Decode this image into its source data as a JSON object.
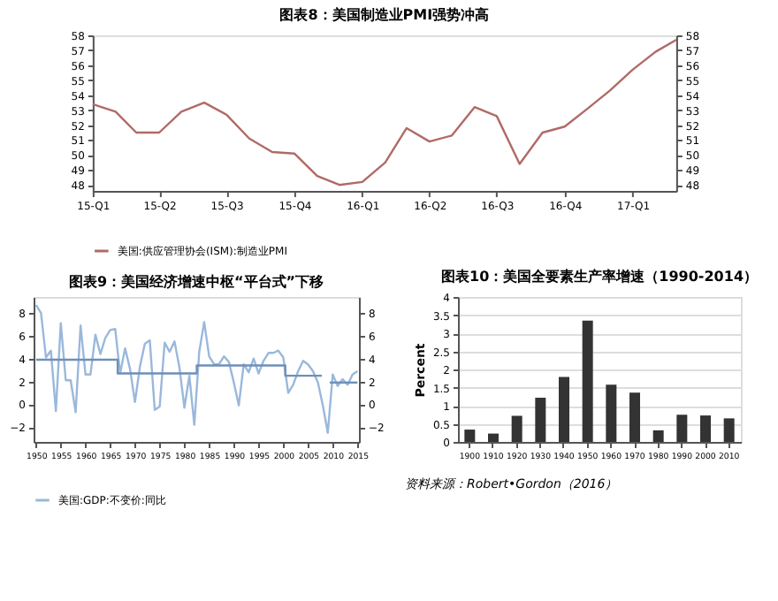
{
  "chart_data": [
    {
      "type": "line",
      "title": "图表8：美国制造业PMI强势冲高",
      "x": [
        "2015-01",
        "2015-02",
        "2015-03",
        "2015-04",
        "2015-05",
        "2015-06",
        "2015-07",
        "2015-08",
        "2015-09",
        "2015-10",
        "2015-11",
        "2015-12",
        "2016-01",
        "2016-02",
        "2016-03",
        "2016-04",
        "2016-05",
        "2016-06",
        "2016-07",
        "2016-08",
        "2016-09",
        "2016-10",
        "2016-11",
        "2016-12",
        "2017-01",
        "2017-02",
        "2017-03"
      ],
      "series": [
        {
          "name": "美国:供应管理协会(ISM):制造业PMI",
          "color": "#b06a66",
          "values": [
            53.4,
            52.9,
            51.5,
            51.5,
            52.9,
            53.5,
            52.7,
            51.1,
            50.2,
            50.1,
            48.6,
            48.0,
            48.2,
            49.5,
            51.8,
            50.9,
            51.3,
            53.2,
            52.6,
            49.4,
            51.5,
            51.9,
            53.1,
            54.3,
            55.7,
            56.9,
            57.7
          ]
        }
      ],
      "xlim": [
        "2015-01",
        "2017-03"
      ],
      "xticks": [
        {
          "value": "2015-01",
          "label": "15-Q1"
        },
        {
          "value": "2015-04",
          "label": "15-Q2"
        },
        {
          "value": "2015-07",
          "label": "15-Q3"
        },
        {
          "value": "2015-10",
          "label": "15-Q4"
        },
        {
          "value": "2016-01",
          "label": "16-Q1"
        },
        {
          "value": "2016-04",
          "label": "16-Q2"
        },
        {
          "value": "2016-07",
          "label": "16-Q3"
        },
        {
          "value": "2016-10",
          "label": "16-Q4"
        },
        {
          "value": "2017-01",
          "label": "17-Q1"
        }
      ],
      "ylim": [
        47.6,
        58
      ],
      "yticks": [
        48,
        49,
        50,
        51,
        52,
        53,
        54,
        55,
        56,
        57,
        58
      ],
      "y2lim": [
        47.6,
        58
      ],
      "y2ticks": [
        48,
        49,
        50,
        51,
        52,
        53,
        54,
        55,
        56,
        57,
        58
      ],
      "grid": false,
      "legend": "bottom"
    },
    {
      "type": "line",
      "title": "图表9：美国经济增速中枢“平台式”下移",
      "x": [
        1950,
        1951,
        1952,
        1953,
        1954,
        1955,
        1956,
        1957,
        1958,
        1959,
        1960,
        1961,
        1962,
        1963,
        1964,
        1965,
        1966,
        1967,
        1968,
        1969,
        1970,
        1971,
        1972,
        1973,
        1974,
        1975,
        1976,
        1977,
        1978,
        1979,
        1980,
        1981,
        1982,
        1983,
        1984,
        1985,
        1986,
        1987,
        1988,
        1989,
        1990,
        1991,
        1992,
        1993,
        1994,
        1995,
        1996,
        1997,
        1998,
        1999,
        2000,
        2001,
        2002,
        2003,
        2004,
        2005,
        2006,
        2007,
        2008,
        2009,
        2010,
        2011,
        2012,
        2013,
        2014,
        2015
      ],
      "series": [
        {
          "name": "美国:GDP:不变价:同比",
          "color": "#9ab8dc",
          "values": [
            8.7,
            8.0,
            4.1,
            4.7,
            -0.6,
            7.1,
            2.1,
            2.1,
            -0.7,
            6.9,
            2.6,
            2.6,
            6.1,
            4.4,
            5.8,
            6.5,
            6.6,
            2.7,
            4.9,
            3.1,
            0.2,
            3.3,
            5.3,
            5.6,
            -0.5,
            -0.2,
            5.4,
            4.6,
            5.5,
            3.2,
            -0.3,
            2.5,
            -1.8,
            4.6,
            7.2,
            4.2,
            3.5,
            3.5,
            4.2,
            3.7,
            1.9,
            -0.1,
            3.5,
            2.8,
            4.0,
            2.7,
            3.8,
            4.5,
            4.5,
            4.7,
            4.1,
            1.0,
            1.7,
            2.9,
            3.8,
            3.5,
            2.9,
            1.9,
            -0.1,
            -2.5,
            2.6,
            1.6,
            2.2,
            1.7,
            2.6,
            2.9
          ]
        },
        {
          "type": "line",
          "color": "#6f8fb8",
          "x": [
            1950,
            1966.5,
            1966.5,
            1982.5,
            1982.5,
            2000.4,
            2000.4,
            2007.8
          ],
          "values": [
            3.9,
            3.9,
            2.7,
            2.7,
            3.4,
            3.4,
            2.5,
            2.5
          ]
        },
        {
          "type": "line",
          "color": "#6f8fb8",
          "x": [
            2009.4,
            2015
          ],
          "values": [
            1.9,
            1.9
          ]
        }
      ],
      "xlim": [
        1949.5,
        2015.3
      ],
      "xticks": [
        1950,
        1955,
        1960,
        1965,
        1970,
        1975,
        1980,
        1985,
        1990,
        1995,
        2000,
        2005,
        2010,
        2015
      ],
      "ylim": [
        -3.3,
        9.4
      ],
      "yticks": [
        -2,
        0,
        2,
        4,
        6,
        8
      ],
      "y2lim": [
        -3.3,
        9.4
      ],
      "y2ticks": [
        -2,
        0,
        2,
        4,
        6,
        8
      ],
      "grid": false,
      "legend": "bottom"
    },
    {
      "type": "bar",
      "title": "图表10：美国全要素生产率增速（1990-2014）",
      "categories": [
        "1900",
        "1910",
        "1920",
        "1930",
        "1940",
        "1950",
        "1960",
        "1970",
        "1980",
        "1990",
        "2000",
        "2010"
      ],
      "values": [
        0.34,
        0.23,
        0.72,
        1.22,
        1.79,
        3.35,
        1.58,
        1.36,
        0.32,
        0.75,
        0.73,
        0.65
      ],
      "color": "#333333",
      "ylabel": "Percent",
      "ylim": [
        0,
        4
      ],
      "yticks": [
        0,
        0.5,
        1,
        1.5,
        2,
        2.5,
        3,
        3.5,
        4
      ],
      "grid": "y",
      "annotations": [
        "资料来源：Robert•Gordon（2016）"
      ]
    }
  ]
}
